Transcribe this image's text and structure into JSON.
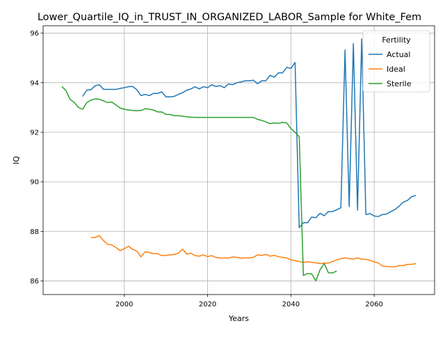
{
  "chart_data": {
    "type": "line",
    "title": "Lower_Quartile_IQ_in_TRUST_IN_ORGANIZED_LABOR_Sample for White_Fem",
    "xlabel": "Years",
    "ylabel": "IQ",
    "xlim": [
      1980.5,
      2074.5
    ],
    "ylim": [
      85.45,
      96.3
    ],
    "x_ticks": [
      2000,
      2020,
      2040,
      2060
    ],
    "y_ticks": [
      86,
      88,
      90,
      92,
      94,
      96
    ],
    "grid": true,
    "legend": {
      "title": "Fertility",
      "placement": "top-right"
    },
    "series": [
      {
        "name": "Actual",
        "color": "#1f77b4",
        "points": [
          [
            1990,
            93.45
          ],
          [
            1991,
            93.7
          ],
          [
            1992,
            93.72
          ],
          [
            1993,
            93.88
          ],
          [
            1994,
            93.92
          ],
          [
            1995,
            93.73
          ],
          [
            1996,
            93.73
          ],
          [
            1997,
            93.73
          ],
          [
            1998,
            93.73
          ],
          [
            1999,
            93.77
          ],
          [
            2000,
            93.8
          ],
          [
            2001,
            93.84
          ],
          [
            2002,
            93.85
          ],
          [
            2003,
            93.72
          ],
          [
            2004,
            93.48
          ],
          [
            2005,
            93.53
          ],
          [
            2006,
            93.48
          ],
          [
            2007,
            93.57
          ],
          [
            2008,
            93.57
          ],
          [
            2009,
            93.63
          ],
          [
            2010,
            93.43
          ],
          [
            2011,
            93.43
          ],
          [
            2012,
            93.45
          ],
          [
            2013,
            93.53
          ],
          [
            2014,
            93.6
          ],
          [
            2015,
            93.7
          ],
          [
            2016,
            93.75
          ],
          [
            2017,
            93.84
          ],
          [
            2018,
            93.75
          ],
          [
            2019,
            93.84
          ],
          [
            2020,
            93.8
          ],
          [
            2021,
            93.92
          ],
          [
            2022,
            93.85
          ],
          [
            2023,
            93.88
          ],
          [
            2024,
            93.8
          ],
          [
            2025,
            93.95
          ],
          [
            2026,
            93.92
          ],
          [
            2027,
            94.0
          ],
          [
            2028,
            94.03
          ],
          [
            2029,
            94.08
          ],
          [
            2030,
            94.08
          ],
          [
            2031,
            94.1
          ],
          [
            2032,
            93.96
          ],
          [
            2033,
            94.08
          ],
          [
            2034,
            94.08
          ],
          [
            2035,
            94.3
          ],
          [
            2036,
            94.22
          ],
          [
            2037,
            94.4
          ],
          [
            2038,
            94.4
          ],
          [
            2039,
            94.62
          ],
          [
            2040,
            94.58
          ],
          [
            2041,
            94.82
          ],
          [
            2042,
            88.15
          ],
          [
            2043,
            88.35
          ],
          [
            2044,
            88.35
          ],
          [
            2045,
            88.58
          ],
          [
            2046,
            88.55
          ],
          [
            2047,
            88.73
          ],
          [
            2048,
            88.63
          ],
          [
            2049,
            88.8
          ],
          [
            2050,
            88.8
          ],
          [
            2051,
            88.87
          ],
          [
            2052,
            88.95
          ],
          [
            2053,
            95.32
          ],
          [
            2054,
            89.0
          ],
          [
            2055,
            95.58
          ],
          [
            2056,
            88.85
          ],
          [
            2057,
            95.77
          ],
          [
            2058,
            88.68
          ],
          [
            2059,
            88.72
          ],
          [
            2060,
            88.62
          ],
          [
            2061,
            88.6
          ],
          [
            2062,
            88.68
          ],
          [
            2063,
            88.7
          ],
          [
            2064,
            88.8
          ],
          [
            2065,
            88.88
          ],
          [
            2066,
            89.02
          ],
          [
            2067,
            89.18
          ],
          [
            2068,
            89.25
          ],
          [
            2069,
            89.4
          ],
          [
            2070,
            89.45
          ]
        ]
      },
      {
        "name": "Ideal",
        "color": "#ff7f0e",
        "points": [
          [
            1992,
            87.75
          ],
          [
            1993,
            87.75
          ],
          [
            1994,
            87.83
          ],
          [
            1995,
            87.63
          ],
          [
            1996,
            87.48
          ],
          [
            1997,
            87.45
          ],
          [
            1998,
            87.35
          ],
          [
            1999,
            87.22
          ],
          [
            2000,
            87.3
          ],
          [
            2001,
            87.4
          ],
          [
            2002,
            87.27
          ],
          [
            2003,
            87.2
          ],
          [
            2004,
            86.97
          ],
          [
            2005,
            87.18
          ],
          [
            2006,
            87.15
          ],
          [
            2007,
            87.1
          ],
          [
            2008,
            87.1
          ],
          [
            2009,
            87.02
          ],
          [
            2010,
            87.03
          ],
          [
            2011,
            87.05
          ],
          [
            2012,
            87.07
          ],
          [
            2013,
            87.12
          ],
          [
            2014,
            87.28
          ],
          [
            2015,
            87.08
          ],
          [
            2016,
            87.12
          ],
          [
            2017,
            87.02
          ],
          [
            2018,
            87.0
          ],
          [
            2019,
            87.05
          ],
          [
            2020,
            86.98
          ],
          [
            2021,
            87.02
          ],
          [
            2022,
            86.95
          ],
          [
            2023,
            86.92
          ],
          [
            2024,
            86.93
          ],
          [
            2025,
            86.92
          ],
          [
            2026,
            86.97
          ],
          [
            2027,
            86.95
          ],
          [
            2028,
            86.92
          ],
          [
            2029,
            86.93
          ],
          [
            2030,
            86.93
          ],
          [
            2031,
            86.95
          ],
          [
            2032,
            87.05
          ],
          [
            2033,
            87.03
          ],
          [
            2034,
            87.07
          ],
          [
            2035,
            87.0
          ],
          [
            2036,
            87.03
          ],
          [
            2037,
            86.98
          ],
          [
            2038,
            86.95
          ],
          [
            2039,
            86.93
          ],
          [
            2040,
            86.85
          ],
          [
            2041,
            86.82
          ],
          [
            2042,
            86.78
          ],
          [
            2043,
            86.75
          ],
          [
            2044,
            86.77
          ],
          [
            2045,
            86.75
          ],
          [
            2046,
            86.73
          ],
          [
            2047,
            86.7
          ],
          [
            2048,
            86.72
          ],
          [
            2049,
            86.72
          ],
          [
            2050,
            86.78
          ],
          [
            2051,
            86.85
          ],
          [
            2052,
            86.9
          ],
          [
            2053,
            86.93
          ],
          [
            2054,
            86.9
          ],
          [
            2055,
            86.88
          ],
          [
            2056,
            86.93
          ],
          [
            2057,
            86.88
          ],
          [
            2058,
            86.87
          ],
          [
            2059,
            86.83
          ],
          [
            2060,
            86.77
          ],
          [
            2061,
            86.72
          ],
          [
            2062,
            86.6
          ],
          [
            2063,
            86.58
          ],
          [
            2064,
            86.57
          ],
          [
            2065,
            86.57
          ],
          [
            2066,
            86.62
          ],
          [
            2067,
            86.62
          ],
          [
            2068,
            86.67
          ],
          [
            2069,
            86.67
          ],
          [
            2070,
            86.7
          ]
        ]
      },
      {
        "name": "Sterile",
        "color": "#2ca02c",
        "points": [
          [
            1985,
            93.85
          ],
          [
            1986,
            93.68
          ],
          [
            1987,
            93.32
          ],
          [
            1988,
            93.2
          ],
          [
            1989,
            93.0
          ],
          [
            1990,
            92.93
          ],
          [
            1991,
            93.2
          ],
          [
            1992,
            93.3
          ],
          [
            1993,
            93.35
          ],
          [
            1994,
            93.33
          ],
          [
            1995,
            93.27
          ],
          [
            1996,
            93.2
          ],
          [
            1997,
            93.22
          ],
          [
            1998,
            93.1
          ],
          [
            1999,
            92.98
          ],
          [
            2000,
            92.93
          ],
          [
            2001,
            92.9
          ],
          [
            2002,
            92.88
          ],
          [
            2003,
            92.87
          ],
          [
            2004,
            92.88
          ],
          [
            2005,
            92.95
          ],
          [
            2006,
            92.93
          ],
          [
            2007,
            92.9
          ],
          [
            2008,
            92.82
          ],
          [
            2009,
            92.82
          ],
          [
            2010,
            92.72
          ],
          [
            2011,
            92.72
          ],
          [
            2012,
            92.67
          ],
          [
            2013,
            92.67
          ],
          [
            2014,
            92.65
          ],
          [
            2015,
            92.62
          ],
          [
            2016,
            92.61
          ],
          [
            2017,
            92.6
          ],
          [
            2018,
            92.6
          ],
          [
            2019,
            92.6
          ],
          [
            2020,
            92.6
          ],
          [
            2021,
            92.6
          ],
          [
            2022,
            92.6
          ],
          [
            2023,
            92.6
          ],
          [
            2024,
            92.6
          ],
          [
            2025,
            92.6
          ],
          [
            2026,
            92.6
          ],
          [
            2027,
            92.6
          ],
          [
            2028,
            92.6
          ],
          [
            2029,
            92.6
          ],
          [
            2030,
            92.6
          ],
          [
            2031,
            92.6
          ],
          [
            2032,
            92.52
          ],
          [
            2033,
            92.48
          ],
          [
            2034,
            92.42
          ],
          [
            2035,
            92.35
          ],
          [
            2036,
            92.38
          ],
          [
            2037,
            92.36
          ],
          [
            2038,
            92.4
          ],
          [
            2039,
            92.38
          ],
          [
            2040,
            92.15
          ],
          [
            2041,
            92.0
          ],
          [
            2042,
            91.82
          ],
          [
            2043,
            86.22
          ],
          [
            2044,
            86.3
          ],
          [
            2045,
            86.28
          ],
          [
            2046,
            86.0
          ],
          [
            2047,
            86.45
          ],
          [
            2048,
            86.7
          ],
          [
            2049,
            86.33
          ],
          [
            2050,
            86.32
          ],
          [
            2051,
            86.4
          ]
        ]
      }
    ]
  }
}
